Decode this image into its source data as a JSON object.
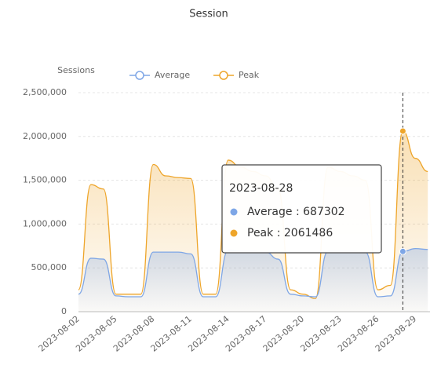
{
  "chart_data": {
    "type": "line",
    "title": "Session",
    "y_axis_label": "Sessions",
    "categories": [
      "2023-08-02",
      null,
      null,
      "2023-08-05",
      null,
      null,
      "2023-08-08",
      null,
      null,
      "2023-08-11",
      null,
      null,
      "2023-08-14",
      null,
      null,
      "2023-08-17",
      null,
      null,
      "2023-08-20",
      null,
      null,
      "2023-08-23",
      null,
      null,
      "2023-08-26",
      null,
      "2023-08-28",
      "2023-08-29",
      null
    ],
    "series": [
      {
        "name": "Average",
        "color": "#7ea6e6",
        "values": [
          200000,
          610000,
          600000,
          180000,
          170000,
          170000,
          680000,
          680000,
          680000,
          660000,
          170000,
          170000,
          700000,
          690000,
          690000,
          680000,
          600000,
          200000,
          180000,
          170000,
          690000,
          690000,
          690000,
          680000,
          170000,
          180000,
          687302,
          720000,
          710000
        ]
      },
      {
        "name": "Peak",
        "color": "#eea52a",
        "values": [
          250000,
          1450000,
          1400000,
          200000,
          200000,
          200000,
          1680000,
          1550000,
          1530000,
          1520000,
          200000,
          200000,
          1730000,
          1650000,
          1600000,
          1550000,
          1400000,
          250000,
          200000,
          150000,
          1650000,
          1600000,
          1550000,
          1500000,
          250000,
          300000,
          2061486,
          1750000,
          1600000
        ]
      }
    ],
    "ylim": [
      0,
      2500000
    ],
    "yticks": [
      0,
      {
        "value": 500000,
        "label": "500,000"
      },
      {
        "value": 1000000,
        "label": "1,000,000"
      },
      {
        "value": 1500000,
        "label": "1,500,000"
      },
      {
        "value": 2000000,
        "label": "2,000,000"
      },
      {
        "value": 2500000,
        "label": "2,500,000"
      }
    ],
    "grid": true,
    "legend": "top",
    "tooltip_index": 26
  }
}
